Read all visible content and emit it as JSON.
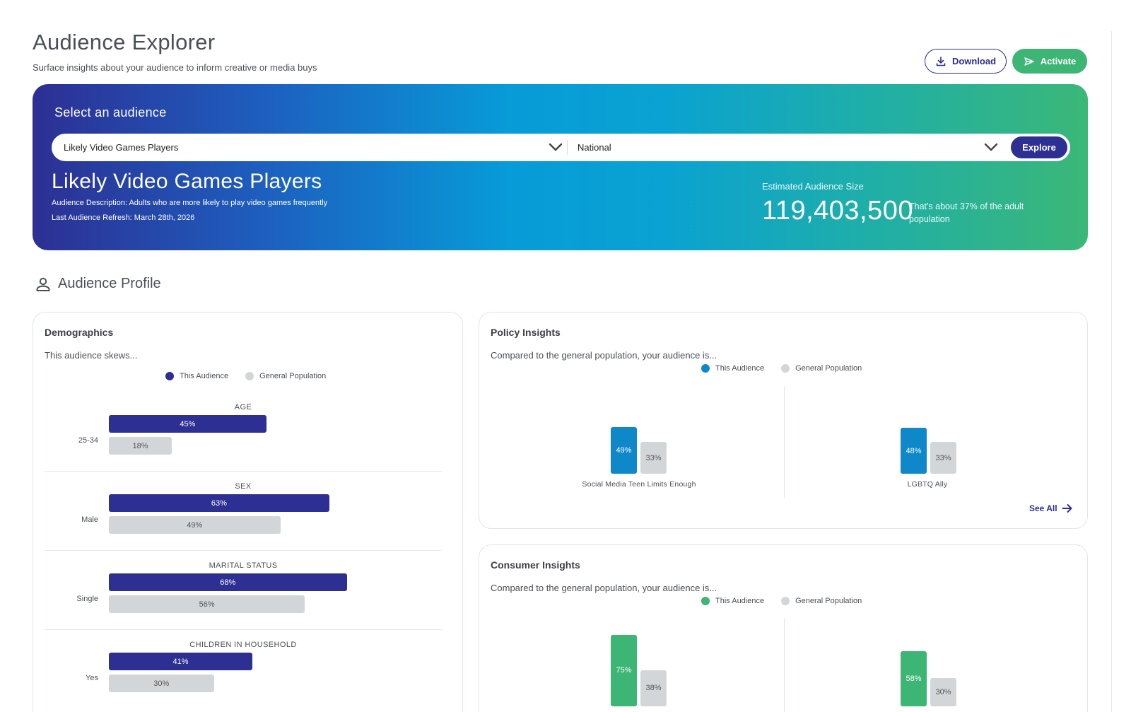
{
  "header": {
    "title": "Audience Explorer",
    "subtitle": "Surface insights about your audience to inform creative or media buys",
    "download_label": "Download",
    "activate_label": "Activate"
  },
  "hero": {
    "heading": "Select an audience",
    "audience_select_value": "Likely Video Games Players",
    "region_select_value": "National",
    "explore_label": "Explore",
    "audience_name": "Likely Video Games Players",
    "description": "Audience Description: Adults who are more likely to play video games frequently",
    "last_refresh": "Last Audience Refresh: March 28th, 2026",
    "estimated_label": "Estimated Audience Size",
    "estimated_value": "119,403,500",
    "estimated_note": "That's about 37% of the adult population"
  },
  "profile": {
    "title": "Audience Profile"
  },
  "demographics": {
    "title": "Demographics",
    "subtitle": "This audience skews...",
    "legend_audience": "This Audience",
    "legend_general": "General Population",
    "groups": [
      {
        "category": "AGE",
        "label": "25-34",
        "audience_value": 45,
        "audience_text": "45%",
        "general_value": 18,
        "general_text": "18%"
      },
      {
        "category": "SEX",
        "label": "Male",
        "audience_value": 63,
        "audience_text": "63%",
        "general_value": 49,
        "general_text": "49%"
      },
      {
        "category": "MARITAL STATUS",
        "label": "Single",
        "audience_value": 68,
        "audience_text": "68%",
        "general_value": 56,
        "general_text": "56%"
      },
      {
        "category": "CHILDREN IN HOUSEHOLD",
        "label": "Yes",
        "audience_value": 41,
        "audience_text": "41%",
        "general_value": 30,
        "general_text": "30%"
      }
    ]
  },
  "policy": {
    "title": "Policy Insights",
    "subtitle": "Compared to the general population, your audience is...",
    "legend_audience": "This Audience",
    "legend_general": "General Population",
    "see_all_label": "See All",
    "items": [
      {
        "label": "Social Media Teen Limits Enough",
        "audience_value": 49,
        "audience_text": "49%",
        "general_value": 33,
        "general_text": "33%"
      },
      {
        "label": "LGBTQ Ally",
        "audience_value": 48,
        "audience_text": "48%",
        "general_value": 33,
        "general_text": "33%"
      }
    ]
  },
  "consumer": {
    "title": "Consumer Insights",
    "subtitle": "Compared to the general population, your audience is...",
    "legend_audience": "This Audience",
    "legend_general": "General Population",
    "items": [
      {
        "audience_value": 75,
        "audience_text": "75%",
        "general_value": 38,
        "general_text": "38%"
      },
      {
        "audience_value": 58,
        "audience_text": "58%",
        "general_value": 30,
        "general_text": "30%"
      }
    ]
  },
  "colors": {
    "primary": "#2d2f93",
    "accent_green": "#3db574",
    "policy_blue": "#0e88c9",
    "general_gray": "#d3d6d9"
  },
  "icons": {
    "download": "download-icon",
    "activate": "send-icon",
    "profile": "person-icon",
    "chevron": "chevron-down-icon",
    "see_all": "arrow-right-icon"
  }
}
